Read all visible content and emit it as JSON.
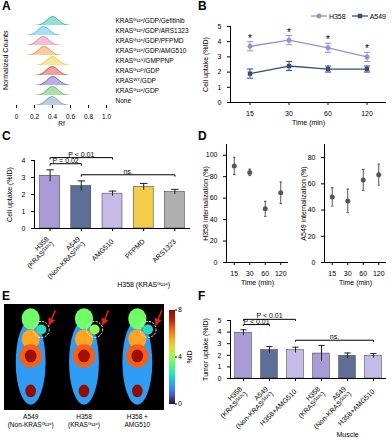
{
  "chart_data": [
    {
      "panel": "A",
      "type": "ridgeline",
      "x_label": "Rf",
      "y_label": "Normalized Counts",
      "xlim": [
        0,
        1
      ],
      "xticks": [
        0,
        0.2,
        0.4,
        0.6,
        0.8,
        {
          "value": 1,
          "label": "1.0"
        }
      ],
      "ylim": [
        0,
        1
      ],
      "tick_labels": "x",
      "x": [
        0,
        0.05,
        0.1,
        0.15,
        0.2,
        0.25,
        0.3,
        0.35,
        0.4,
        0.45,
        0.5,
        0.55,
        0.6,
        0.65,
        0.7,
        0.75,
        0.8,
        0.85,
        0.9,
        0.95,
        1
      ],
      "series": [
        {
          "name": "KRASᴳ¹²ᶜ/GDP/Gefitinib",
          "color": "#3fc1b0",
          "values": [
            0,
            0,
            0,
            0,
            0,
            0.03,
            0.2,
            0.65,
            1,
            0.7,
            0.25,
            0.05,
            0,
            0,
            0,
            0,
            0,
            0,
            0,
            0,
            0
          ]
        },
        {
          "name": "KRASᴳ¹²ᶜ/GDP/ARS1323",
          "color": "#5ec8e6",
          "values": [
            0,
            0,
            0,
            0.03,
            0.2,
            0.65,
            1,
            0.7,
            0.25,
            0.05,
            0,
            0,
            0,
            0,
            0,
            0,
            0,
            0,
            0,
            0,
            0
          ]
        },
        {
          "name": "KRASᴳ¹²ᶜ/GDP/PFPMD",
          "color": "#e58bb8",
          "values": [
            0,
            0,
            0,
            0.04,
            0.25,
            0.7,
            1,
            0.65,
            0.2,
            0.04,
            0,
            0,
            0,
            0,
            0,
            0,
            0,
            0,
            0,
            0,
            0
          ]
        },
        {
          "name": "KRASᴳ¹²ᶜ/GDP/AMG510",
          "color": "#f0a04b",
          "values": [
            0,
            0,
            0,
            0.02,
            0.18,
            0.6,
            1,
            0.75,
            0.3,
            0.06,
            0,
            0,
            0,
            0,
            0,
            0,
            0,
            0,
            0,
            0,
            0
          ]
        },
        {
          "name": "KRASᴳ¹²ⱽ/GMPPNP",
          "color": "#e8d44d",
          "values": [
            0,
            0,
            0,
            0,
            0,
            0.03,
            0.2,
            0.65,
            1,
            0.7,
            0.25,
            0.05,
            0,
            0,
            0,
            0,
            0,
            0,
            0,
            0,
            0
          ]
        },
        {
          "name": "KRASᴳ¹²ᴰ/GDP",
          "color": "#e0554f",
          "values": [
            0,
            0,
            0,
            0,
            0,
            0.04,
            0.22,
            0.7,
            1,
            0.65,
            0.22,
            0.04,
            0,
            0,
            0,
            0,
            0,
            0,
            0,
            0,
            0
          ]
        },
        {
          "name": "KRASᵂᵀ/GDP",
          "color": "#7b6fc9",
          "values": [
            0,
            0,
            0,
            0,
            0,
            0.02,
            0.18,
            0.62,
            1,
            0.72,
            0.28,
            0.06,
            0,
            0,
            0,
            0,
            0,
            0,
            0,
            0,
            0
          ]
        },
        {
          "name": "KRASᴳ¹²ᶜ/GDP",
          "color": "#6cc36a",
          "values": [
            0,
            0,
            0,
            0,
            0,
            0.03,
            0.2,
            0.68,
            1,
            0.68,
            0.2,
            0.03,
            0,
            0,
            0,
            0,
            0,
            0,
            0,
            0,
            0
          ]
        },
        {
          "name": "None",
          "color": "#8aa0c8",
          "values": [
            0,
            0,
            0,
            0,
            0,
            0.05,
            0.25,
            0.7,
            1,
            0.6,
            0.2,
            0.03,
            0,
            0,
            0,
            0,
            0,
            0,
            0,
            0,
            0
          ]
        }
      ]
    },
    {
      "panel": "B",
      "type": "line",
      "x_label": "Time (min)",
      "y_label": "Cell uptake (%ID)",
      "categories": [
        15,
        30,
        60,
        120
      ],
      "ylim": [
        0,
        5
      ],
      "yticks": [
        0,
        1,
        2,
        3,
        4,
        5
      ],
      "legend": "top-right",
      "series": [
        {
          "name": "H358",
          "color": "#9b8fd0",
          "marker": "circle",
          "values": [
            3.7,
            4.1,
            3.6,
            3.0
          ],
          "errors": [
            0.3,
            0.3,
            0.3,
            0.3
          ]
        },
        {
          "name": "A549",
          "color": "#34507a",
          "marker": "square",
          "values": [
            1.9,
            2.4,
            2.2,
            2.2
          ],
          "errors": [
            0.3,
            0.3,
            0.2,
            0.2
          ]
        }
      ],
      "significance": [
        "*",
        "*",
        "*",
        "*"
      ]
    },
    {
      "panel": "C",
      "type": "bar",
      "y_label": "Cell uptake (%ID)",
      "categories": [
        "H358\n(KRASᴳ¹²ᶜ)",
        "A549\n(Non-KRASᴳ¹²ᶜ)",
        "AMG510",
        "PFPMD",
        "ARS1323"
      ],
      "values": [
        3.1,
        2.5,
        2.05,
        2.45,
        2.15
      ],
      "errors": [
        0.35,
        0.3,
        0.15,
        0.2,
        0.15
      ],
      "colors": [
        "#a99bd6",
        "#5d6f96",
        "#c4bce6",
        "#f2cc4a",
        "#b0b0b0"
      ],
      "ylim": [
        0,
        4
      ],
      "yticks": [
        0,
        1,
        2,
        3,
        4
      ],
      "groups": [
        {
          "label": "H358 (KRASᴳ¹²ᶜ)",
          "from": 2,
          "to": 4
        }
      ],
      "brackets": [
        {
          "from": 1,
          "to": 4,
          "text": "ns."
        },
        {
          "from": 0,
          "to": 1,
          "text": "P = 0.02"
        },
        {
          "from": 0,
          "to": 2,
          "text": "P < 0.01"
        }
      ]
    },
    {
      "panel": "D",
      "type": "scatter",
      "x_label": "Time (min)",
      "y_label": "H358 internalization (%)",
      "categories": [
        15,
        30,
        60,
        120
      ],
      "values": [
        90,
        84,
        50,
        65
      ],
      "errors": [
        8,
        3,
        7,
        10
      ],
      "color": "#555555",
      "marker": "circle",
      "ylim": [
        0,
        110
      ],
      "yticks": [
        0,
        20,
        40,
        60,
        80,
        100
      ]
    },
    {
      "type": "scatter",
      "x_label": "Time (min)",
      "y_label": "A549 internalization (%)",
      "categories": [
        15,
        30,
        60,
        120
      ],
      "values": [
        50,
        47,
        63,
        67
      ],
      "errors": [
        7,
        9,
        8,
        8
      ],
      "color": "#555555",
      "marker": "circle",
      "ylim": [
        0,
        90
      ],
      "yticks": [
        0,
        20,
        40,
        60,
        80
      ]
    },
    {
      "panel": "E",
      "type": "image",
      "labels": [
        "A549\n(Non-KRASᴳ¹²ᶜ)",
        "H358\n(KRASᴳ¹²ᶜ)",
        "H358 +\nAMG510"
      ],
      "tumor_uptake": [
        2.45,
        3.95,
        2.45
      ],
      "colorbar": {
        "label": "%ID",
        "range": [
          0,
          8
        ],
        "ticks": [
          0,
          4,
          8
        ]
      }
    },
    {
      "panel": "F",
      "type": "bar",
      "y_label": "Tumor uptake (%ID)",
      "categories": [
        "H358\n(KRASᴳ¹²ᶜ)",
        "A549\n(Non-KRASᴳ¹²ᶜ)",
        "H358+AMG510",
        "H358\n(KRASᴳ¹²ᶜ)",
        "A549\n(Non-KRASᴳ¹²ᶜ)",
        "H358+AMG510"
      ],
      "values": [
        3.95,
        2.45,
        2.45,
        2.15,
        1.95,
        1.95
      ],
      "errors": [
        0.25,
        0.3,
        0.25,
        0.7,
        0.25,
        0.2
      ],
      "colors": [
        "#a99bd6",
        "#5d6f96",
        "#c4bce6",
        "#a99bd6",
        "#5d6f96",
        "#c4bce6"
      ],
      "ylim": [
        0,
        5
      ],
      "yticks": [
        0,
        1,
        2,
        3,
        4,
        5
      ],
      "groups": [
        {
          "label": "Muscle",
          "from": 3,
          "to": 5
        }
      ],
      "brackets": [
        {
          "from": 2,
          "to": 5,
          "text": "ns."
        },
        {
          "from": 0,
          "to": 1,
          "text": "P < 0.01"
        },
        {
          "from": 0,
          "to": 2,
          "text": "P < 0.01"
        }
      ]
    }
  ]
}
